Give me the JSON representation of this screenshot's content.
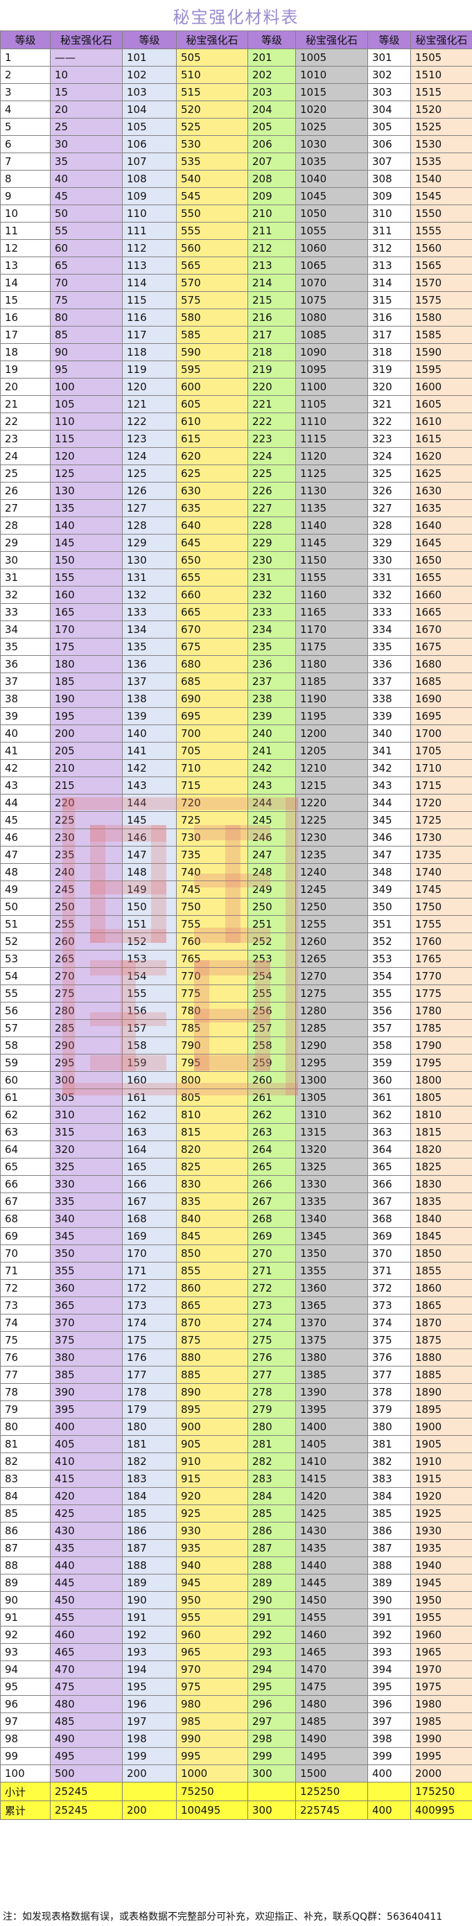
{
  "title": "秘宝强化材料表",
  "headers": [
    "等级",
    "秘宝强化石",
    "等级",
    "秘宝强化石",
    "等级",
    "秘宝强化石",
    "等级",
    "秘宝强化石"
  ],
  "first_stone": "——",
  "row_count": 100,
  "stone_step": 5,
  "subtotal": {
    "label": "小计",
    "values": [
      "25245",
      "",
      "75250",
      "",
      "125250",
      "",
      "175250"
    ]
  },
  "total": {
    "label": "累计",
    "values": [
      "25245",
      "200",
      "100495",
      "300",
      "225745",
      "400",
      "400995"
    ]
  },
  "note": "注：如发现表格数据有误，或表格数据不完整部分可补充，欢迎指正、补充，联系QQ群：563640411",
  "colors": {
    "header": "#b083d9",
    "col_purple": "#d9c4ee",
    "col_blue": "#dfe6f6",
    "col_yellow": "#fdf08c",
    "col_green": "#cdf79a",
    "col_gray": "#c8c8c8",
    "col_peach": "#fde6cf",
    "total_rows": "#fffe40",
    "watermark": "#e07878"
  },
  "watermark": "red seal stamp"
}
